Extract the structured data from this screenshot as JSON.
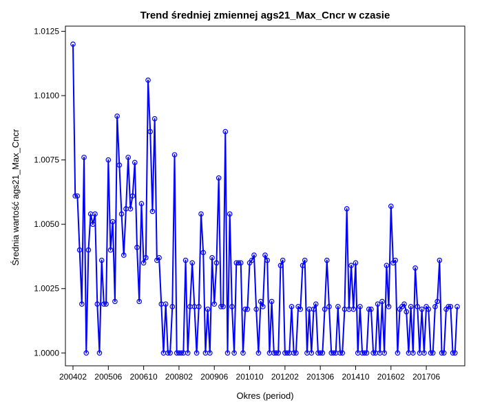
{
  "chart_data": {
    "type": "line",
    "title": "Trend średniej zmiennej ags21_Max_Cncr w czasie",
    "xlabel": "Okres (period)",
    "ylabel": "Średnia wartość ags21_Max_Cncr",
    "x_tick_labels": [
      "200402",
      "200506",
      "200610",
      "200802",
      "200906",
      "201010",
      "201202",
      "201306",
      "201410",
      "201602",
      "201706"
    ],
    "y_ticks": [
      1.0,
      1.0025,
      1.005,
      1.0075,
      1.01,
      1.0125
    ],
    "y_tick_labels": [
      "1.0000",
      "1.0025",
      "1.0050",
      "1.0075",
      "1.0100",
      "1.0125"
    ],
    "ylim": [
      0.9995,
      1.0127
    ],
    "grid": false,
    "legend": "none",
    "series": [
      {
        "color": "#0000ff",
        "values": [
          1.012,
          1.0061,
          1.0061,
          1.004,
          1.0019,
          1.0076,
          1.0,
          1.004,
          1.0054,
          1.005,
          1.0054,
          1.0019,
          1.0,
          1.0036,
          1.0019,
          1.0019,
          1.0075,
          1.004,
          1.0051,
          1.002,
          1.0092,
          1.0073,
          1.0054,
          1.0038,
          1.0056,
          1.0076,
          1.0056,
          1.0061,
          1.0074,
          1.0041,
          1.002,
          1.0058,
          1.0035,
          1.0037,
          1.0106,
          1.0086,
          1.0055,
          1.0091,
          1.0036,
          1.0037,
          1.0019,
          1.0,
          1.0019,
          1.0,
          1.0,
          1.0018,
          1.0077,
          1.0,
          1.0,
          1.0,
          1.0,
          1.0036,
          1.0,
          1.0018,
          1.0035,
          1.0018,
          1.0,
          1.0018,
          1.0054,
          1.0039,
          1.0,
          1.0017,
          1.0,
          1.0037,
          1.0019,
          1.0035,
          1.0068,
          1.0018,
          1.0018,
          1.0086,
          1.0,
          1.0054,
          1.0018,
          1.0,
          1.0035,
          1.0035,
          1.0035,
          1.0,
          1.0017,
          1.0017,
          1.0035,
          1.0036,
          1.0038,
          1.0017,
          1.0,
          1.002,
          1.0018,
          1.0038,
          1.0036,
          1.0,
          1.002,
          1.0,
          1.0,
          1.0,
          1.0034,
          1.0036,
          1.0,
          1.0,
          1.0,
          1.0018,
          1.0,
          1.0,
          1.0018,
          1.0017,
          1.0034,
          1.0036,
          1.0,
          1.0017,
          1.0,
          1.0017,
          1.0019,
          1.0,
          1.0,
          1.0,
          1.0017,
          1.0036,
          1.0018,
          1.0,
          1.0,
          1.0,
          1.0018,
          1.0,
          1.0,
          1.0017,
          1.0056,
          1.0017,
          1.0034,
          1.0017,
          1.0035,
          1.0,
          1.0018,
          1.0,
          1.0,
          1.0,
          1.0017,
          1.0017,
          1.0,
          1.0,
          1.0019,
          1.0,
          1.002,
          1.0,
          1.0034,
          1.0018,
          1.0057,
          1.0035,
          1.0036,
          1.0,
          1.0017,
          1.0018,
          1.0019,
          1.0016,
          1.0,
          1.0018,
          1.0,
          1.0033,
          1.0018,
          1.0,
          1.0017,
          1.0,
          1.0018,
          1.0017,
          1.0,
          1.0,
          1.0018,
          1.002,
          1.0036,
          1.0,
          1.0,
          1.0017,
          1.0018,
          1.0018,
          1.0,
          1.0,
          1.0018
        ]
      }
    ]
  }
}
